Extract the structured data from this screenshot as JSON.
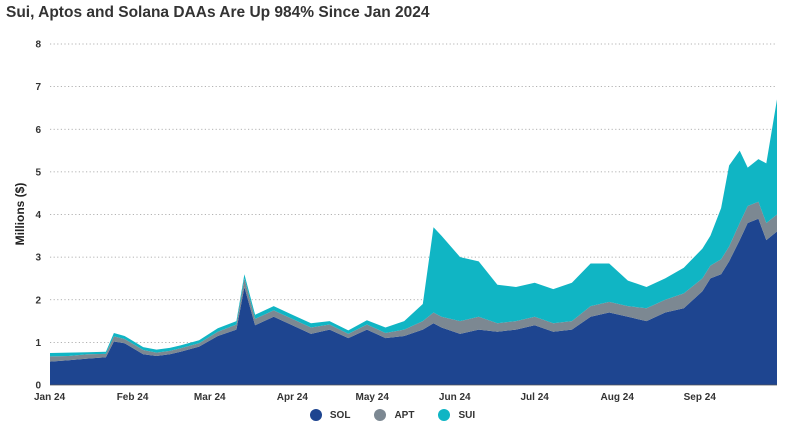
{
  "chart_data": {
    "type": "area",
    "stacked": true,
    "title": "Sui, Aptos and Solana DAAs Are Up 984% Since Jan 2024",
    "ylabel": "Millions ($)",
    "ylim": [
      0,
      8
    ],
    "y_ticks": [
      "0",
      "1",
      "2",
      "3",
      "4",
      "5",
      "6",
      "7",
      "8"
    ],
    "x_tick_labels": [
      "Jan 24",
      "Feb 24",
      "Mar 24",
      "Apr 24",
      "May 24",
      "Jun 24",
      "Jul 24",
      "Aug 24",
      "Sep 24"
    ],
    "grid": "horizontal-dotted",
    "legend_position": "bottom-center",
    "x": [
      "2024-01-01",
      "2024-01-08",
      "2024-01-15",
      "2024-01-22",
      "2024-01-25",
      "2024-01-29",
      "2024-02-05",
      "2024-02-10",
      "2024-02-15",
      "2024-02-19",
      "2024-02-26",
      "2024-03-04",
      "2024-03-11",
      "2024-03-14",
      "2024-03-18",
      "2024-03-25",
      "2024-04-01",
      "2024-04-08",
      "2024-04-15",
      "2024-04-22",
      "2024-04-29",
      "2024-05-06",
      "2024-05-13",
      "2024-05-20",
      "2024-05-24",
      "2024-05-27",
      "2024-06-03",
      "2024-06-10",
      "2024-06-17",
      "2024-06-24",
      "2024-07-01",
      "2024-07-08",
      "2024-07-15",
      "2024-07-22",
      "2024-07-29",
      "2024-08-05",
      "2024-08-12",
      "2024-08-19",
      "2024-08-26",
      "2024-09-02",
      "2024-09-05",
      "2024-09-09",
      "2024-09-12",
      "2024-09-16",
      "2024-09-19",
      "2024-09-23",
      "2024-09-26",
      "2024-09-30"
    ],
    "series": [
      {
        "name": "SOL",
        "values": [
          0.55,
          0.58,
          0.62,
          0.65,
          1.02,
          0.98,
          0.72,
          0.68,
          0.72,
          0.78,
          0.9,
          1.15,
          1.3,
          2.3,
          1.4,
          1.6,
          1.4,
          1.2,
          1.3,
          1.1,
          1.3,
          1.1,
          1.15,
          1.3,
          1.45,
          1.35,
          1.2,
          1.3,
          1.25,
          1.3,
          1.4,
          1.25,
          1.3,
          1.6,
          1.7,
          1.6,
          1.5,
          1.7,
          1.8,
          2.2,
          2.5,
          2.6,
          2.9,
          3.4,
          3.8,
          3.9,
          3.4,
          3.6
        ]
      },
      {
        "name": "APT",
        "values": [
          0.12,
          0.1,
          0.1,
          0.08,
          0.12,
          0.1,
          0.1,
          0.08,
          0.08,
          0.08,
          0.08,
          0.1,
          0.12,
          0.2,
          0.15,
          0.15,
          0.15,
          0.15,
          0.12,
          0.1,
          0.12,
          0.12,
          0.15,
          0.2,
          0.25,
          0.25,
          0.3,
          0.3,
          0.2,
          0.2,
          0.2,
          0.2,
          0.2,
          0.25,
          0.25,
          0.25,
          0.3,
          0.3,
          0.35,
          0.3,
          0.3,
          0.35,
          0.35,
          0.4,
          0.4,
          0.4,
          0.4,
          0.4
        ]
      },
      {
        "name": "SUI",
        "values": [
          0.08,
          0.08,
          0.05,
          0.05,
          0.08,
          0.07,
          0.07,
          0.07,
          0.07,
          0.07,
          0.07,
          0.08,
          0.08,
          0.1,
          0.1,
          0.1,
          0.1,
          0.1,
          0.08,
          0.08,
          0.1,
          0.13,
          0.2,
          0.4,
          2.0,
          1.9,
          1.5,
          1.3,
          0.9,
          0.8,
          0.8,
          0.8,
          0.9,
          1.0,
          0.9,
          0.6,
          0.5,
          0.5,
          0.6,
          0.7,
          0.7,
          1.2,
          1.9,
          1.7,
          0.9,
          1.0,
          1.4,
          2.7
        ]
      }
    ],
    "colors": {
      "SOL": "#1e4590",
      "APT": "#7c8892",
      "SUI": "#10b5c4"
    }
  }
}
